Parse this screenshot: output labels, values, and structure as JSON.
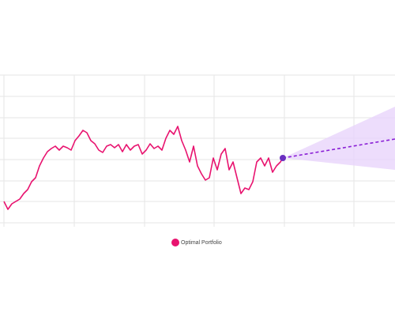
{
  "chart_data": {
    "type": "line",
    "xlim": [
      0,
      495
    ],
    "ylim": [
      0,
      187
    ],
    "xticks": [
      0,
      89,
      178,
      266,
      355,
      443
    ],
    "yticks": [
      0,
      27,
      53,
      80,
      107,
      133,
      160,
      187
    ],
    "grid": true,
    "legend": "bottom",
    "series": [
      {
        "name": "Optimal Portfolio",
        "color": "#e8136f",
        "x": [
          0,
          5,
          10,
          20,
          25,
          30,
          35,
          40,
          45,
          50,
          55,
          60,
          65,
          70,
          75,
          80,
          85,
          90,
          95,
          100,
          105,
          110,
          115,
          120,
          125,
          130,
          135,
          140,
          145,
          150,
          155,
          160,
          165,
          170,
          175,
          180,
          185,
          190,
          195,
          200,
          205,
          210,
          215,
          220,
          225,
          230,
          235,
          240,
          245,
          250,
          255,
          260,
          265,
          270,
          275,
          280,
          285,
          290,
          295,
          300,
          305,
          310,
          315,
          320,
          325,
          330,
          335,
          340,
          345,
          350,
          353
        ],
        "values": [
          27,
          17,
          24,
          30,
          37,
          42,
          52,
          57,
          72,
          82,
          90,
          94,
          97,
          92,
          97,
          95,
          92,
          104,
          110,
          117,
          114,
          104,
          100,
          92,
          89,
          97,
          99,
          95,
          99,
          90,
          99,
          92,
          97,
          99,
          87,
          92,
          100,
          94,
          97,
          92,
          107,
          117,
          112,
          122,
          104,
          92,
          77,
          97,
          72,
          62,
          54,
          57,
          82,
          67,
          87,
          94,
          67,
          77,
          57,
          37,
          44,
          42,
          52,
          77,
          82,
          72,
          82,
          64,
          72,
          77,
          82
        ]
      }
    ],
    "forecast": {
      "color": "#8a1fd6",
      "band_color": "#e9d4fb",
      "x": [
        353,
        495
      ],
      "values": [
        82,
        106
      ],
      "lower": [
        82,
        67
      ],
      "upper": [
        82,
        147
      ]
    }
  }
}
